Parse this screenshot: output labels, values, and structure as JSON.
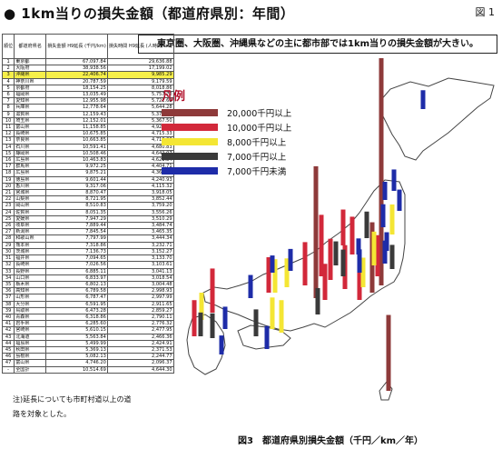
{
  "header": {
    "title": "● 1km当りの損失金額（都道府県別：年間）",
    "figure_label": "図 1",
    "subtitle": "東京圏、大阪圏、沖縄県などの主に都市部では1km当りの損失金額が大きい。",
    "caption": "図3　都道府県別損失金額（千円／km／年）",
    "note_line1": "注)延長についても市町村道以上の道",
    "note_line2": "路を対象とした。"
  },
  "legend": {
    "title": "凡例",
    "items": [
      {
        "label": "20,000千円以上",
        "color": "#8e3a3a"
      },
      {
        "label": "10,000千円以上",
        "color": "#d2283a"
      },
      {
        "label": "8,000千円以上",
        "color": "#f4e634"
      },
      {
        "label": "7,000千円以上",
        "color": "#3a3a3a"
      },
      {
        "label": "7,000千円未満",
        "color": "#1e2ca8"
      }
    ]
  },
  "table": {
    "headers": {
      "rank": "順位",
      "pref": "都道府県名",
      "loss": "損失金額 H9延長 (千円/km)",
      "per": "損失時間 H9延長 (人時間/km)"
    },
    "rows": [
      {
        "rank": "1",
        "pref": "東京都",
        "loss": "67,097.84",
        "per": "29,636.88"
      },
      {
        "rank": "2",
        "pref": "大阪府",
        "loss": "38,938.56",
        "per": "17,199.02"
      },
      {
        "rank": "3",
        "pref": "沖縄県",
        "loss": "22,406.74",
        "per": "9,985.29",
        "hl": true
      },
      {
        "rank": "4",
        "pref": "神奈川県",
        "loss": "20,787.59",
        "per": "9,179.59"
      },
      {
        "rank": "5",
        "pref": "京都府",
        "loss": "18,154.25",
        "per": "8,018.86"
      },
      {
        "rank": "6",
        "pref": "福岡県",
        "loss": "13,035.49",
        "per": "5,757.72"
      },
      {
        "rank": "7",
        "pref": "愛知県",
        "loss": "12,955.98",
        "per": "5,722.62"
      },
      {
        "rank": "8",
        "pref": "兵庫県",
        "loss": "12,778.64",
        "per": "5,644.28"
      },
      {
        "rank": "9",
        "pref": "滋賀県",
        "loss": "12,159.43",
        "per": "5,370.76"
      },
      {
        "rank": "10",
        "pref": "埼玉県",
        "loss": "12,152.01",
        "per": "5,367.50"
      },
      {
        "rank": "11",
        "pref": "富山県",
        "loss": "11,158.85",
        "per": "4,928.81"
      },
      {
        "rank": "12",
        "pref": "長崎県",
        "loss": "10,675.85",
        "per": "4,715.33"
      },
      {
        "rank": "13",
        "pref": "奈良県",
        "loss": "10,663.85",
        "per": "4,710.08"
      },
      {
        "rank": "14",
        "pref": "石川県",
        "loss": "10,591.41",
        "per": "4,680.83"
      },
      {
        "rank": "15",
        "pref": "静岡県",
        "loss": "10,508.46",
        "per": "4,642.07"
      },
      {
        "rank": "16",
        "pref": "広島県",
        "loss": "10,463.83",
        "per": "4,621.84"
      },
      {
        "rank": "17",
        "pref": "群馬県",
        "loss": "9,972.25",
        "per": "4,404.71"
      },
      {
        "rank": "18",
        "pref": "広島県",
        "loss": "9,875.21",
        "per": "4,361.84"
      },
      {
        "rank": "19",
        "pref": "徳島県",
        "loss": "9,601.44",
        "per": "4,240.93"
      },
      {
        "rank": "20",
        "pref": "香川県",
        "loss": "9,317.06",
        "per": "4,115.32"
      },
      {
        "rank": "21",
        "pref": "宮城県",
        "loss": "8,870.47",
        "per": "3,918.05"
      },
      {
        "rank": "22",
        "pref": "山梨県",
        "loss": "8,721.95",
        "per": "3,852.44"
      },
      {
        "rank": "23",
        "pref": "岡山県",
        "loss": "8,510.83",
        "per": "3,759.20"
      },
      {
        "rank": "24",
        "pref": "佐賀県",
        "loss": "8,051.35",
        "per": "3,556.26"
      },
      {
        "rank": "25",
        "pref": "愛媛県",
        "loss": "7,947.29",
        "per": "3,510.29"
      },
      {
        "rank": "26",
        "pref": "岐阜県",
        "loss": "7,889.44",
        "per": "3,484.74"
      },
      {
        "rank": "27",
        "pref": "新潟県",
        "loss": "7,845.54",
        "per": "3,465.35"
      },
      {
        "rank": "28",
        "pref": "和歌山県",
        "loss": "7,797.99",
        "per": "3,444.34"
      },
      {
        "rank": "29",
        "pref": "熊本県",
        "loss": "7,318.86",
        "per": "3,232.71"
      },
      {
        "rank": "30",
        "pref": "茨城県",
        "loss": "7,136.73",
        "per": "3,152.27"
      },
      {
        "rank": "31",
        "pref": "福井県",
        "loss": "7,094.65",
        "per": "3,133.70"
      },
      {
        "rank": "32",
        "pref": "長崎県",
        "loss": "7,026.56",
        "per": "3,103.61"
      },
      {
        "rank": "33",
        "pref": "長野県",
        "loss": "6,885.11",
        "per": "3,041.13"
      },
      {
        "rank": "34",
        "pref": "山口県",
        "loss": "6,833.97",
        "per": "3,018.54"
      },
      {
        "rank": "35",
        "pref": "栃木県",
        "loss": "6,802.13",
        "per": "3,004.48"
      },
      {
        "rank": "36",
        "pref": "高知県",
        "loss": "6,789.58",
        "per": "2,998.93"
      },
      {
        "rank": "37",
        "pref": "山形県",
        "loss": "6,787.47",
        "per": "2,997.99"
      },
      {
        "rank": "38",
        "pref": "大分県",
        "loss": "6,591.95",
        "per": "2,911.65"
      },
      {
        "rank": "39",
        "pref": "鳥取県",
        "loss": "6,473.28",
        "per": "2,859.27"
      },
      {
        "rank": "40",
        "pref": "青森県",
        "loss": "6,318.86",
        "per": "2,790.11"
      },
      {
        "rank": "41",
        "pref": "岩手県",
        "loss": "6,285.60",
        "per": "2,776.32"
      },
      {
        "rank": "42",
        "pref": "宮崎県",
        "loss": "5,610.15",
        "per": "2,477.95"
      },
      {
        "rank": "43",
        "pref": "北海道",
        "loss": "5,563.84",
        "per": "2,466.36"
      },
      {
        "rank": "44",
        "pref": "福島県",
        "loss": "5,499.99",
        "per": "2,424.91"
      },
      {
        "rank": "45",
        "pref": "秋田県",
        "loss": "5,369.13",
        "per": "2,371.53"
      },
      {
        "rank": "46",
        "pref": "島根県",
        "loss": "5,082.13",
        "per": "2,244.77"
      },
      {
        "rank": "47",
        "pref": "富山県",
        "loss": "4,746.20",
        "per": "2,096.37"
      },
      {
        "rank": "-",
        "pref": "全国計",
        "loss": "10,514.69",
        "per": "4,644.30"
      }
    ]
  },
  "chart_data": {
    "type": "bar",
    "title": "図3　都道府県別損失金額（千円／km／年）",
    "subtitle": "東京圏、大阪圏、沖縄県などの主に都市部では1km当りの損失金額が大きい。",
    "value_unit": "千円/km/年",
    "legend_placement": "top-left",
    "classes": [
      {
        "label": "20,000千円以上",
        "min": 20000,
        "color": "#8e3a3a"
      },
      {
        "label": "10,000千円以上",
        "min": 10000,
        "color": "#d2283a"
      },
      {
        "label": "8,000千円以上",
        "min": 8000,
        "color": "#f4e634"
      },
      {
        "label": "7,000千円以上",
        "min": 7000,
        "color": "#3a3a3a"
      },
      {
        "label": "7,000千円未満",
        "min": 0,
        "color": "#1e2ca8"
      }
    ],
    "categories": [
      "東京都",
      "大阪府",
      "沖縄県",
      "神奈川県",
      "京都府",
      "福岡県",
      "愛知県",
      "兵庫県",
      "滋賀県",
      "埼玉県",
      "富山県",
      "長崎県",
      "奈良県",
      "石川県",
      "静岡県",
      "広島県",
      "群馬県",
      "広島県",
      "徳島県",
      "香川県",
      "宮城県",
      "山梨県",
      "岡山県",
      "佐賀県",
      "愛媛県",
      "岐阜県",
      "新潟県",
      "和歌山県",
      "熊本県",
      "茨城県",
      "福井県",
      "長崎県",
      "長野県",
      "山口県",
      "栃木県",
      "高知県",
      "山形県",
      "大分県",
      "鳥取県",
      "青森県",
      "岩手県",
      "宮崎県",
      "北海道",
      "福島県",
      "秋田県",
      "島根県",
      "富山県"
    ],
    "values": [
      67097.84,
      38938.56,
      22406.74,
      20787.59,
      18154.25,
      13035.49,
      12955.98,
      12778.64,
      12159.43,
      12152.01,
      11158.85,
      10675.85,
      10663.85,
      10591.41,
      10508.46,
      10463.83,
      9972.25,
      9875.21,
      9601.44,
      9317.06,
      8870.47,
      8721.95,
      8510.83,
      8051.35,
      7947.29,
      7889.44,
      7845.54,
      7797.99,
      7318.86,
      7136.73,
      7094.65,
      7026.56,
      6885.11,
      6833.97,
      6802.13,
      6789.58,
      6787.47,
      6591.95,
      6473.28,
      6318.86,
      6285.6,
      5610.15,
      5563.84,
      5499.99,
      5369.13,
      5082.13,
      4746.2
    ]
  }
}
